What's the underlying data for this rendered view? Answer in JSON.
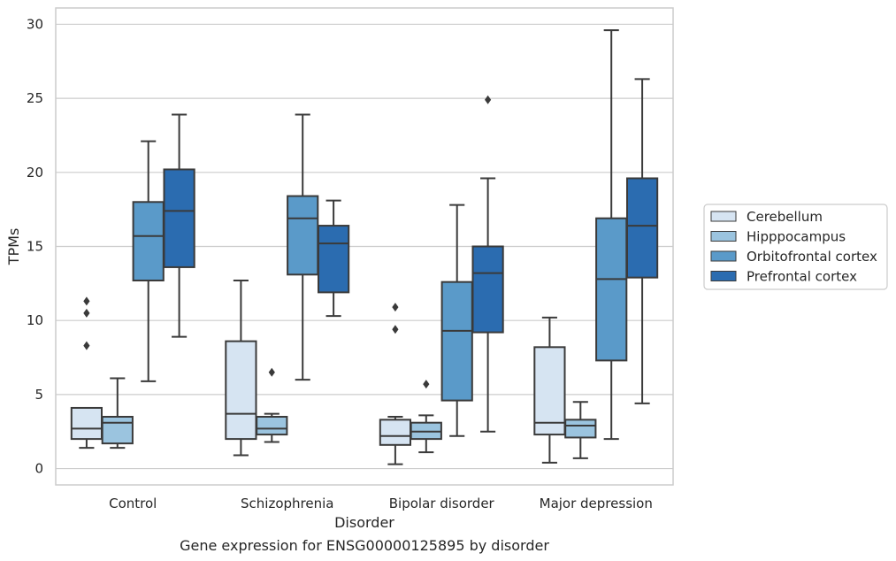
{
  "chart_data": {
    "type": "boxplot",
    "title": "Gene expression for ENSG00000125895 by disorder",
    "xlabel": "Disorder",
    "ylabel": "TPMs",
    "ylim": [
      -1.1,
      31.1
    ],
    "yticks": [
      0,
      5,
      10,
      15,
      20,
      25,
      30
    ],
    "grid": "horizontal",
    "legend_position": "right",
    "categories": [
      "Control",
      "Schizophrenia",
      "Bipolar disorder",
      "Major depression"
    ],
    "series": [
      {
        "name": "Cerebellum",
        "color": "#d6e4f2",
        "boxes": [
          {
            "whisker_low": 1.4,
            "q1": 2.0,
            "median": 2.7,
            "q3": 4.1,
            "whisker_high": 4.1,
            "outliers": [
              8.3,
              10.5,
              11.3
            ]
          },
          {
            "whisker_low": 0.9,
            "q1": 2.0,
            "median": 3.7,
            "q3": 8.6,
            "whisker_high": 12.7,
            "outliers": []
          },
          {
            "whisker_low": 0.3,
            "q1": 1.6,
            "median": 2.2,
            "q3": 3.3,
            "whisker_high": 3.5,
            "outliers": [
              9.4,
              10.9
            ]
          },
          {
            "whisker_low": 0.4,
            "q1": 2.3,
            "median": 3.1,
            "q3": 8.2,
            "whisker_high": 10.2,
            "outliers": []
          }
        ]
      },
      {
        "name": "Hipppocampus",
        "color": "#9bc4df",
        "boxes": [
          {
            "whisker_low": 1.4,
            "q1": 1.7,
            "median": 3.1,
            "q3": 3.5,
            "whisker_high": 6.1,
            "outliers": []
          },
          {
            "whisker_low": 1.8,
            "q1": 2.3,
            "median": 2.7,
            "q3": 3.5,
            "whisker_high": 3.7,
            "outliers": [
              6.5
            ]
          },
          {
            "whisker_low": 1.1,
            "q1": 2.0,
            "median": 2.5,
            "q3": 3.1,
            "whisker_high": 3.6,
            "outliers": [
              5.7
            ]
          },
          {
            "whisker_low": 0.7,
            "q1": 2.1,
            "median": 2.9,
            "q3": 3.3,
            "whisker_high": 4.5,
            "outliers": []
          }
        ]
      },
      {
        "name": "Orbitofrontal cortex",
        "color": "#5a9ac9",
        "boxes": [
          {
            "whisker_low": 5.9,
            "q1": 12.7,
            "median": 15.7,
            "q3": 18.0,
            "whisker_high": 22.1,
            "outliers": []
          },
          {
            "whisker_low": 6.0,
            "q1": 13.1,
            "median": 16.9,
            "q3": 18.4,
            "whisker_high": 23.9,
            "outliers": []
          },
          {
            "whisker_low": 2.2,
            "q1": 4.6,
            "median": 9.3,
            "q3": 12.6,
            "whisker_high": 17.8,
            "outliers": []
          },
          {
            "whisker_low": 2.0,
            "q1": 7.3,
            "median": 12.8,
            "q3": 16.9,
            "whisker_high": 29.6,
            "outliers": []
          }
        ]
      },
      {
        "name": "Prefrontal cortex",
        "color": "#2b6cb0",
        "boxes": [
          {
            "whisker_low": 8.9,
            "q1": 13.6,
            "median": 17.4,
            "q3": 20.2,
            "whisker_high": 23.9,
            "outliers": []
          },
          {
            "whisker_low": 10.3,
            "q1": 11.9,
            "median": 15.2,
            "q3": 16.4,
            "whisker_high": 18.1,
            "outliers": []
          },
          {
            "whisker_low": 2.5,
            "q1": 9.2,
            "median": 13.2,
            "q3": 15.0,
            "whisker_high": 19.6,
            "outliers": [
              24.9
            ]
          },
          {
            "whisker_low": 4.4,
            "q1": 12.9,
            "median": 16.4,
            "q3": 19.6,
            "whisker_high": 26.3,
            "outliers": []
          }
        ]
      }
    ]
  },
  "colors": {
    "grid": "#cccccc",
    "frame": "#cccccc",
    "box_edge": "#3a3a3a",
    "text": "#262626"
  }
}
